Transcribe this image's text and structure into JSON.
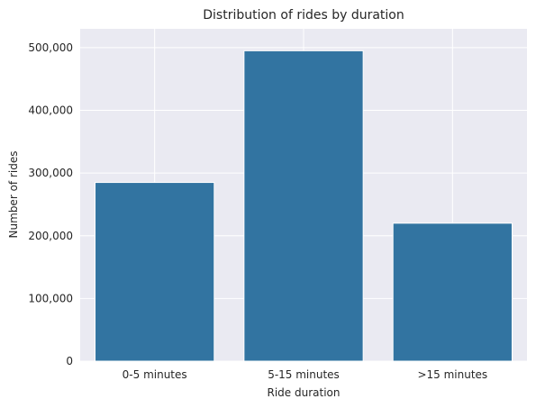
{
  "chart_data": {
    "type": "bar",
    "title": "Distribution of rides by duration",
    "xlabel": "Ride duration",
    "ylabel": "Number of rides",
    "categories": [
      "0-5 minutes",
      "5-15 minutes",
      ">15 minutes"
    ],
    "values": [
      285000,
      495000,
      220000
    ],
    "ylim": [
      0,
      530000
    ],
    "yticks": [
      0,
      100000,
      200000,
      300000,
      400000,
      500000
    ],
    "ytick_labels": [
      "0",
      "100,000",
      "200,000",
      "300,000",
      "400,000",
      "500,000"
    ],
    "grid": true,
    "bar_color": "#3274a1",
    "background_color": "#eaeaf2"
  }
}
